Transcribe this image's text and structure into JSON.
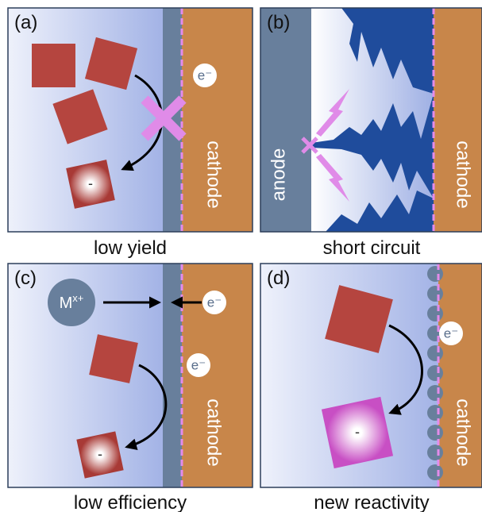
{
  "panels": [
    {
      "label": "(a)",
      "caption": "low yield",
      "electrode": "cathode",
      "electron": "e⁻",
      "product_charge": "-"
    },
    {
      "label": "(b)",
      "caption": "short circuit",
      "anode": "anode",
      "electrode": "cathode"
    },
    {
      "label": "(c)",
      "caption": "low efficiency",
      "electrode": "cathode",
      "ion": {
        "base": "M",
        "sup": "x+"
      },
      "electrons": [
        "e⁻",
        "e⁻"
      ],
      "product_charge": "-"
    },
    {
      "label": "(d)",
      "caption": "new reactivity",
      "electrode": "cathode",
      "electron": "e⁻",
      "product_charge": "-"
    }
  ]
}
